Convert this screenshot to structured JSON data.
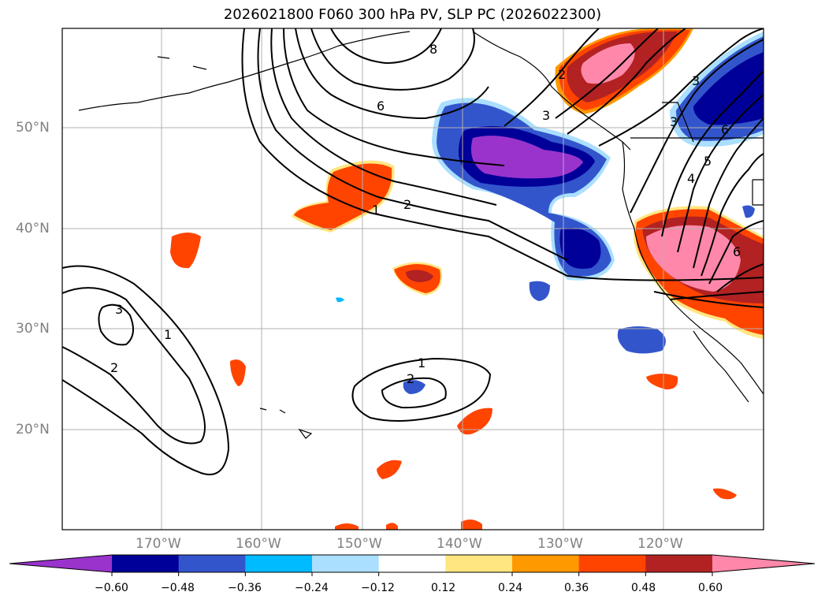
{
  "title": "2026021800 F060 300 hPa PV, SLP PC (2026022300)",
  "map": {
    "latitude_labels": [
      "50°N",
      "40°N",
      "30°N",
      "20°N"
    ],
    "longitude_labels": [
      "170°W",
      "160°W",
      "150°W",
      "140°W",
      "130°W",
      "120°W"
    ],
    "contour_labels": [
      "8",
      "6",
      "3",
      "2",
      "1",
      "3",
      "2",
      "6",
      "5",
      "4",
      "3",
      "6",
      "3",
      "1",
      "2",
      "1",
      "2"
    ],
    "grid": true
  },
  "colorbar": {
    "ticks": [
      "−0.60",
      "−0.48",
      "−0.36",
      "−0.24",
      "−0.12",
      "0.12",
      "0.24",
      "0.36",
      "0.48",
      "0.60"
    ],
    "colors": [
      "#9933cc",
      "#000099",
      "#3355cc",
      "#00bbff",
      "#aadfff",
      "#ffffff",
      "#ffe680",
      "#ff9900",
      "#ff4400",
      "#b22222",
      "#ff88aa"
    ]
  }
}
